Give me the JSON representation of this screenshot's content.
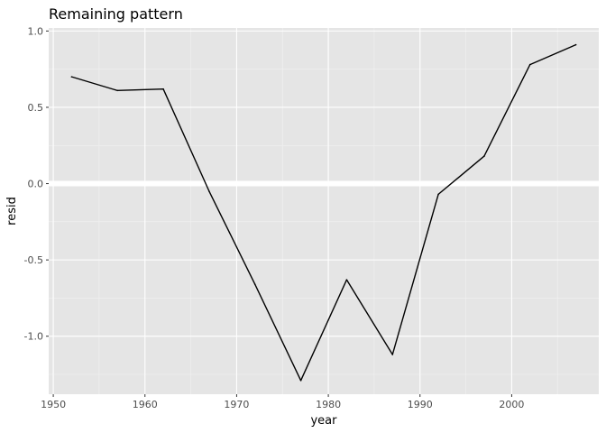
{
  "chart_data": {
    "type": "line",
    "title": "Remaining pattern",
    "xlabel": "year",
    "ylabel": "resid",
    "xlim": [
      1949.5,
      2009.5
    ],
    "ylim": [
      -1.38,
      1.02
    ],
    "x_ticks": [
      1950,
      1960,
      1970,
      1980,
      1990,
      2000
    ],
    "y_ticks": [
      1.0,
      0.5,
      0.0,
      -0.5,
      -1.0
    ],
    "y_tick_labels": [
      "1.0",
      "0.5",
      "0.0",
      "-0.5",
      "-1.0"
    ],
    "highlight_y": 0.0,
    "grid": true,
    "background": "#e5e5e5",
    "series": [
      {
        "color": "#000000",
        "x": [
          1952,
          1957,
          1962,
          1967,
          1972,
          1977,
          1982,
          1987,
          1992,
          1997,
          2002,
          2007
        ],
        "y": [
          0.7,
          0.61,
          0.62,
          -0.05,
          -0.66,
          -1.29,
          -0.63,
          -1.12,
          -0.07,
          0.18,
          0.78,
          0.91
        ]
      }
    ]
  }
}
